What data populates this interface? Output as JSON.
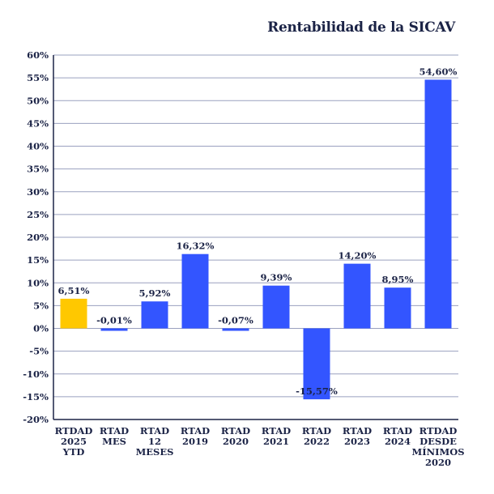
{
  "chart_data": {
    "type": "bar",
    "title": "Rentabilidad de la SICAV",
    "xlabel": "",
    "ylabel": "",
    "ylim": [
      -20,
      60
    ],
    "y_ticks": [
      "60%",
      "55%",
      "50%",
      "45%",
      "40%",
      "35%",
      "30%",
      "25%",
      "20%",
      "15%",
      "10%",
      "5%",
      "0%",
      "-5%",
      "-10%",
      "-15%",
      "-20%"
    ],
    "grid": true,
    "categories": [
      [
        "RTDAD",
        "2025",
        "YTD"
      ],
      [
        "RTAD",
        "MES"
      ],
      [
        "RTAD",
        "12",
        "MESES"
      ],
      [
        "RTAD",
        "2019"
      ],
      [
        "RTAD",
        "2020"
      ],
      [
        "RTAD",
        "2021"
      ],
      [
        "RTAD",
        "2022"
      ],
      [
        "RTAD",
        "2023"
      ],
      [
        "RTAD",
        "2024"
      ],
      [
        "RTDAD",
        "DESDE",
        "MÍNIMOS",
        "2020"
      ]
    ],
    "values": [
      6.51,
      -0.01,
      5.92,
      16.32,
      -0.07,
      9.39,
      -15.57,
      14.2,
      8.95,
      54.6
    ],
    "data_labels": [
      "6,51%",
      "-0,01%",
      "5,92%",
      "16,32%",
      "-0,07%",
      "9,39%",
      "-15,57%",
      "14,20%",
      "8,95%",
      "54,60%"
    ],
    "bar_colors": [
      "#FFC800",
      "#3355FF",
      "#3355FF",
      "#3355FF",
      "#3355FF",
      "#3355FF",
      "#3355FF",
      "#3355FF",
      "#3355FF",
      "#3355FF"
    ]
  }
}
